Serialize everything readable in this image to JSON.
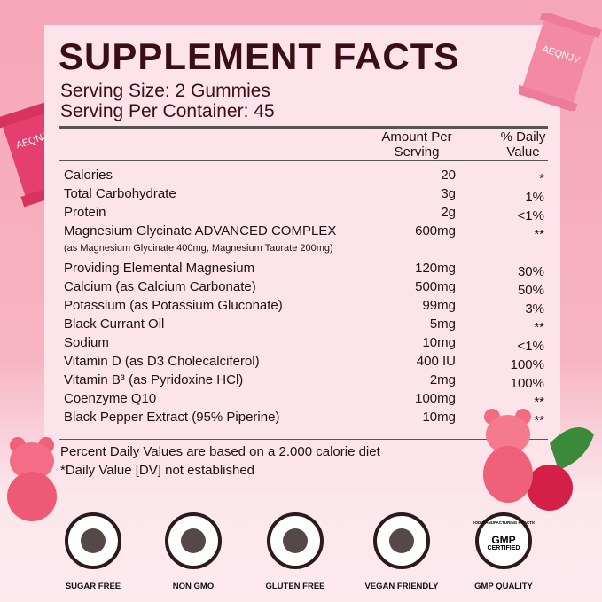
{
  "label": {
    "title": "SUPPLEMENT FACTS",
    "serving_size": "Serving Size: 2 Gummies",
    "servings_per_container": "Serving Per Container: 45",
    "header_amount": [
      "Amount Per",
      "Serving"
    ],
    "header_dv": [
      "% Daily",
      "Value"
    ],
    "rows": [
      {
        "name": "Calories",
        "amount": "20",
        "dv": "*"
      },
      {
        "name": "Total Carbohydrate",
        "amount": "3g",
        "dv": "1%"
      },
      {
        "name": "Protein",
        "amount": "2g",
        "dv": "<1%"
      },
      {
        "name": "Magnesium Glycinate ADVANCED COMPLEX",
        "amount": "600mg",
        "dv": "**",
        "note": "(as Magnesium Glycinate 400mg, Magnesium Taurate 200mg)"
      },
      {
        "name": "Providing Elemental Magnesium",
        "amount": "120mg",
        "dv": "30%"
      },
      {
        "name": "Calcium (as Calcium Carbonate)",
        "amount": "500mg",
        "dv": "50%"
      },
      {
        "name": "Potassium (as Potassium Gluconate)",
        "amount": "99mg",
        "dv": "3%"
      },
      {
        "name": "Black Currant Oil",
        "amount": "5mg",
        "dv": "**"
      },
      {
        "name": "Sodium",
        "amount": "10mg",
        "dv": "<1%"
      },
      {
        "name": "Vitamin D (as D3 Cholecalciferol)",
        "amount": "400 IU",
        "dv": "100%"
      },
      {
        "name": "Vitamin B³ (as Pyridoxine HCl)",
        "amount": "2mg",
        "dv": "100%"
      },
      {
        "name": "Coenzyme Q10",
        "amount": "100mg",
        "dv": "**"
      },
      {
        "name": "Black Pepper Extract (95% Piperine)",
        "amount": "10mg",
        "dv": "**"
      }
    ],
    "footnotes": [
      "Percent Daily Values are based on a 2.000 calorie diet",
      "*Daily Value [DV] not established"
    ]
  },
  "brand": "AEQNJV",
  "badges": [
    "SUGAR FREE",
    "NON GMO",
    "GLUTEN FREE",
    "VEGAN FRIENDLY",
    "GMP QUALITY"
  ],
  "gmp_seal": {
    "ring": "GOOD MANUFACTURING PRACTICE",
    "center": "GMP",
    "sub": "CERTIFIED"
  }
}
